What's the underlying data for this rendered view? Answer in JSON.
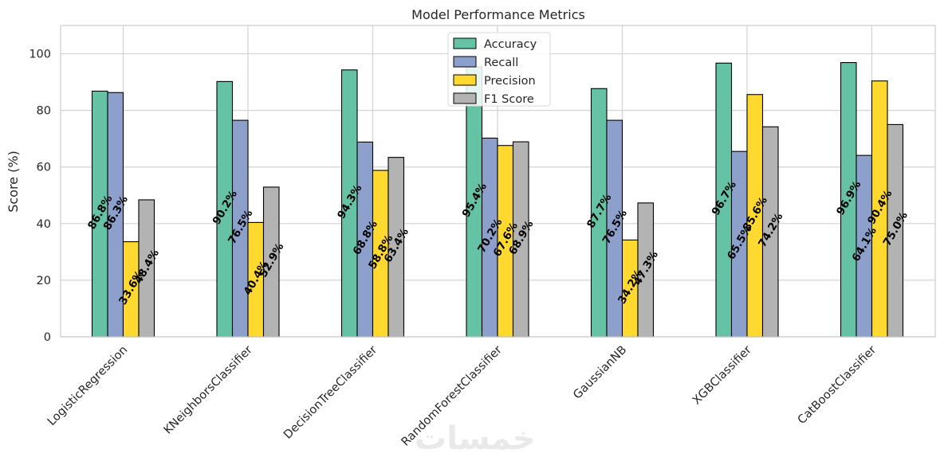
{
  "chart_data": {
    "type": "bar",
    "title": "Model Performance Metrics",
    "xlabel": "",
    "ylabel": "Score (%)",
    "ylim": [
      0,
      110
    ],
    "yticks": [
      0,
      20,
      40,
      60,
      80,
      100
    ],
    "grid": true,
    "legend_position": "top-center",
    "categories": [
      "LogisticRegression",
      "KNeighborsClassifier",
      "DecisionTreeClassifier",
      "RandomForestClassifier",
      "GaussianNB",
      "XGBClassifier",
      "CatBoostClassifier"
    ],
    "series": [
      {
        "name": "Accuracy",
        "color": "#66c2a5",
        "values": [
          86.8,
          90.2,
          94.3,
          95.4,
          87.7,
          96.7,
          96.9
        ]
      },
      {
        "name": "Recall",
        "color": "#8da0cb",
        "values": [
          86.3,
          76.5,
          68.8,
          70.2,
          76.5,
          65.5,
          64.1
        ]
      },
      {
        "name": "Precision",
        "color": "#ffd92f",
        "values": [
          33.6,
          40.4,
          58.8,
          67.6,
          34.2,
          85.6,
          90.4
        ]
      },
      {
        "name": "F1 Score",
        "color": "#b3b3b3",
        "values": [
          48.4,
          52.9,
          63.4,
          68.9,
          47.3,
          74.2,
          75.0
        ]
      }
    ],
    "data_labels": [
      [
        "86.8%",
        "86.3%",
        "33.6%",
        "48.4%"
      ],
      [
        "90.2%",
        "76.5%",
        "40.4%",
        "52.9%"
      ],
      [
        "94.3%",
        "68.8%",
        "58.8%",
        "63.4%"
      ],
      [
        "95.4%",
        "70.2%",
        "67.6%",
        "68.9%"
      ],
      [
        "87.7%",
        "76.5%",
        "34.2%",
        "47.3%"
      ],
      [
        "96.7%",
        "65.5%",
        "85.6%",
        "74.2%"
      ],
      [
        "96.9%",
        "64.1%",
        "90.4%",
        "75.0%"
      ]
    ]
  },
  "watermark": "خمسات"
}
